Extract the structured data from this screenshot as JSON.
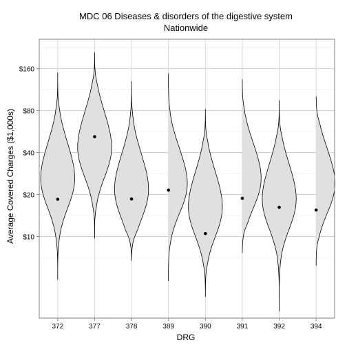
{
  "chart_data": {
    "type": "violin",
    "title": "MDC 06 Diseases & disorders of the digestive system",
    "subtitle": "Nationwide",
    "xlabel": "DRG",
    "ylabel": "Average Covered Charges ($1,000s)",
    "y_scale": "log2",
    "y_ticks": [
      10,
      20,
      40,
      80,
      160
    ],
    "y_tick_labels": [
      "$10",
      "$20",
      "$40",
      "$80",
      "$160"
    ],
    "ylim": [
      2.6,
      260
    ],
    "grid": true,
    "categories": [
      "372",
      "377",
      "378",
      "389",
      "390",
      "391",
      "392",
      "394"
    ],
    "series": [
      {
        "category": "372",
        "mean": 18.5,
        "min": 4.9,
        "max": 150,
        "mode": 24
      },
      {
        "category": "377",
        "mean": 52,
        "min": 9.7,
        "max": 210,
        "mode": 40
      },
      {
        "category": "378",
        "mean": 18.6,
        "min": 6.7,
        "max": 130,
        "mode": 20
      },
      {
        "category": "389",
        "mean": 21.5,
        "min": 4.8,
        "max": 155,
        "mode": 22
      },
      {
        "category": "390",
        "mean": 10.5,
        "min": 3.7,
        "max": 82,
        "mode": 15
      },
      {
        "category": "391",
        "mean": 18.8,
        "min": 7.6,
        "max": 140,
        "mode": 24
      },
      {
        "category": "392",
        "mean": 16.2,
        "min": 2.9,
        "max": 95,
        "mode": 17
      },
      {
        "category": "394",
        "mean": 15.5,
        "min": 6.2,
        "max": 105,
        "mode": 22
      }
    ]
  }
}
